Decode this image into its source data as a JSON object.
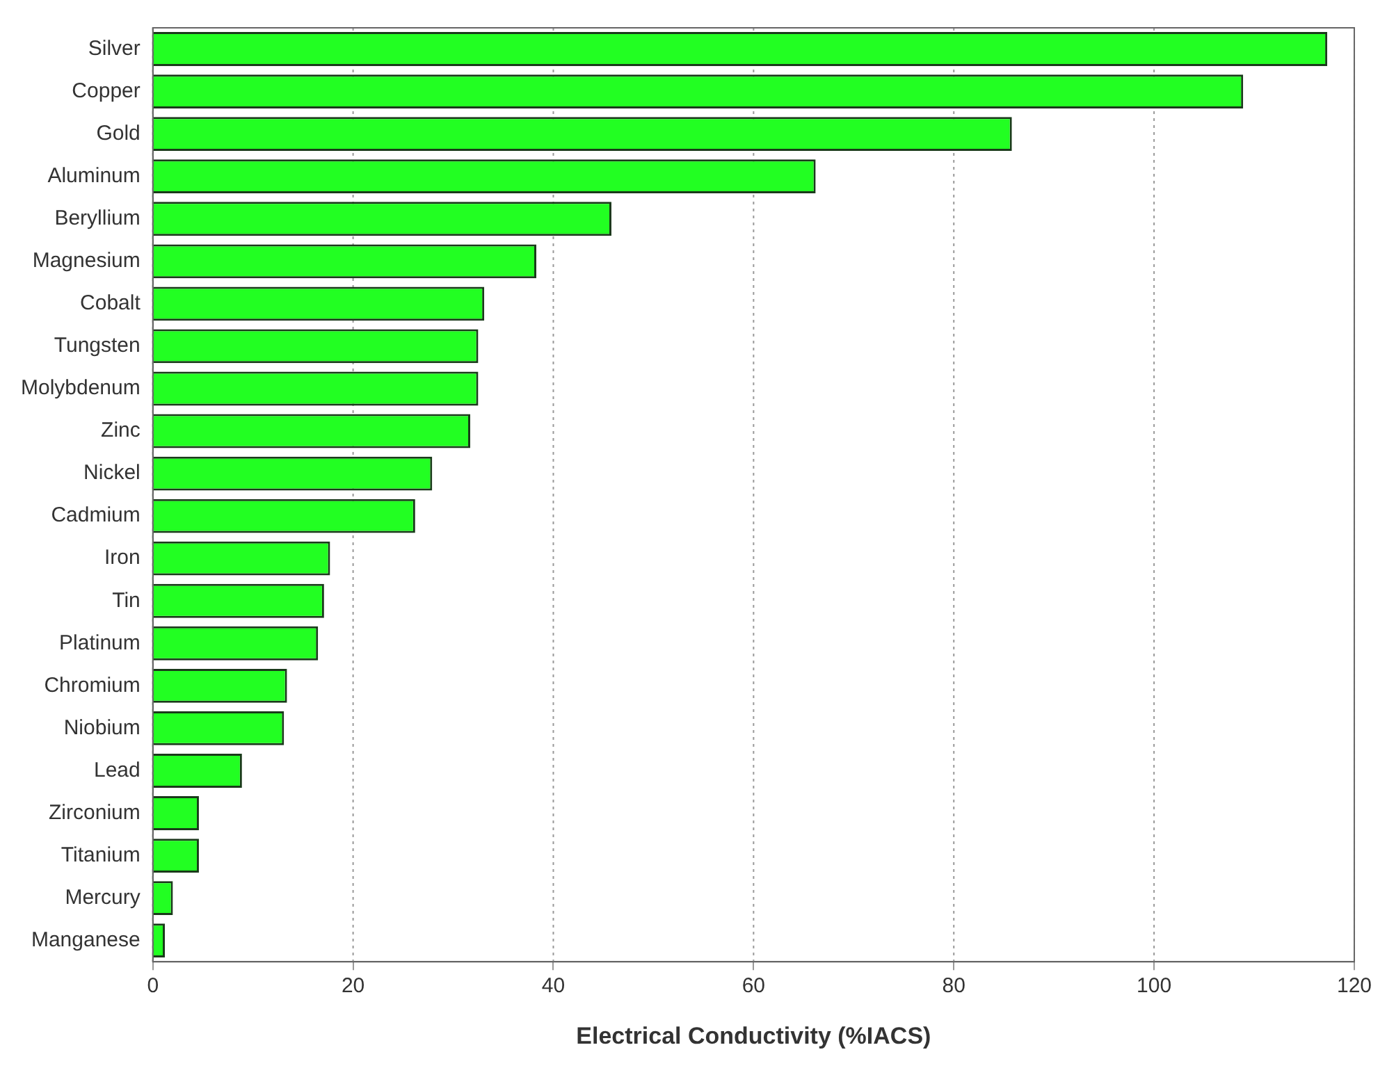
{
  "chart_data": {
    "type": "bar",
    "orientation": "horizontal",
    "xlabel": "Electrical Conductivity (%IACS)",
    "categories": [
      "Silver",
      "Copper",
      "Gold",
      "Aluminum",
      "Beryllium",
      "Magnesium",
      "Cobalt",
      "Tungsten",
      "Molybdenum",
      "Zinc",
      "Nickel",
      "Cadmium",
      "Iron",
      "Tin",
      "Platinum",
      "Chromium",
      "Niobium",
      "Lead",
      "Zirconium",
      "Titanium",
      "Mercury",
      "Manganese"
    ],
    "values": [
      117.3,
      108.9,
      85.8,
      66.2,
      45.8,
      38.3,
      33.1,
      32.5,
      32.5,
      31.7,
      27.9,
      26.2,
      17.7,
      17.1,
      16.5,
      13.4,
      13.1,
      8.9,
      4.6,
      4.6,
      2.0,
      1.2
    ],
    "color": "#22ff22",
    "xlim": [
      0,
      120
    ],
    "xticks": [
      0,
      20,
      40,
      60,
      80,
      100,
      120
    ],
    "grid": "x",
    "legend": false
  }
}
